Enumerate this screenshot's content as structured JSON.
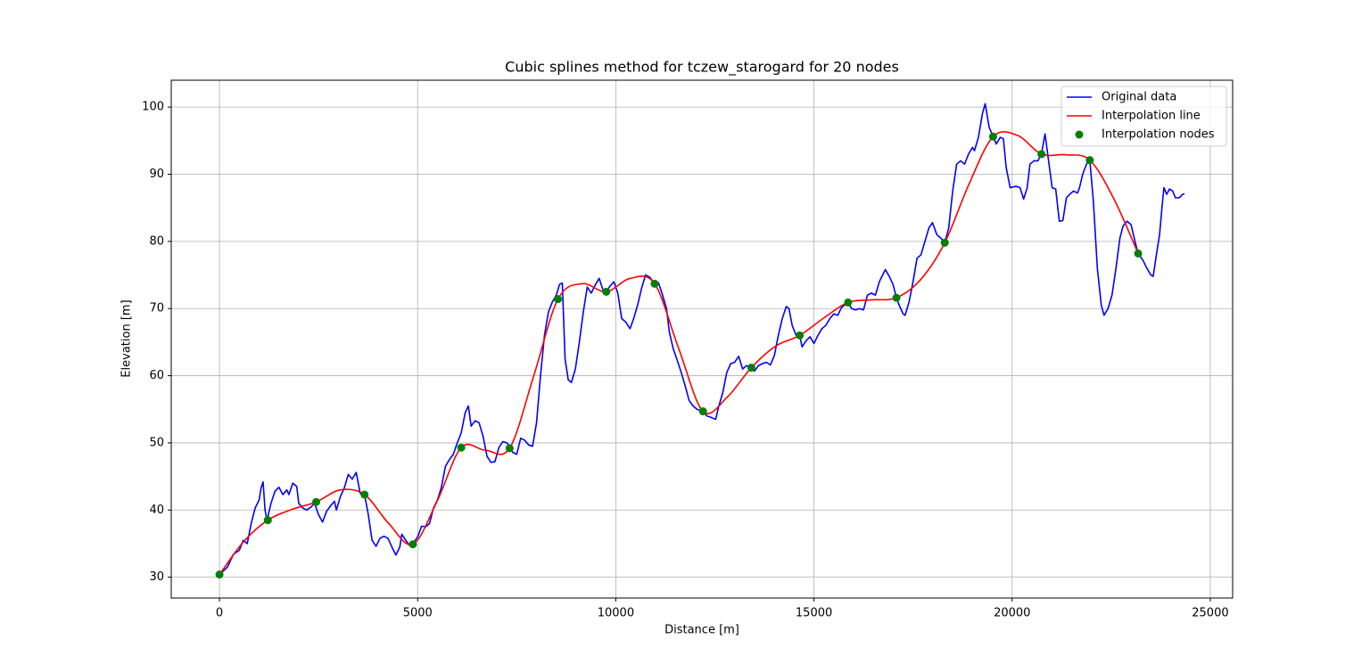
{
  "chart_data": {
    "type": "line",
    "title": "Cubic splines method for tczew_starogard for 20 nodes",
    "xlabel": "Distance [m]",
    "ylabel": "Elevation [m]",
    "xlim": [
      -1217,
      25564
    ],
    "ylim": [
      26.9,
      104.0
    ],
    "xticks": [
      0,
      5000,
      10000,
      15000,
      20000,
      25000
    ],
    "yticks": [
      30,
      40,
      50,
      60,
      70,
      80,
      90,
      100
    ],
    "grid": true,
    "legend": "upper right",
    "series": [
      {
        "name": "Original data",
        "type": "line",
        "color": "#0000ff",
        "x": [
          0,
          200,
          350,
          500,
          600,
          700,
          800,
          900,
          1000,
          1050,
          1100,
          1150,
          1200,
          1300,
          1400,
          1500,
          1600,
          1700,
          1750,
          1850,
          1950,
          2000,
          2100,
          2200,
          2300,
          2400,
          2500,
          2600,
          2700,
          2800,
          2900,
          2950,
          3050,
          3150,
          3250,
          3350,
          3450,
          3550,
          3660,
          3750,
          3850,
          3950,
          4050,
          4150,
          4250,
          4350,
          4450,
          4550,
          4600,
          4700,
          4800,
          4880,
          5000,
          5100,
          5200,
          5300,
          5400,
          5500,
          5600,
          5700,
          5800,
          5900,
          6000,
          6100,
          6200,
          6280,
          6350,
          6450,
          6550,
          6650,
          6750,
          6850,
          6950,
          7050,
          7150,
          7250,
          7320,
          7400,
          7500,
          7600,
          7700,
          7800,
          7900,
          8000,
          8100,
          8200,
          8300,
          8400,
          8500,
          8580,
          8650,
          8720,
          8800,
          8880,
          8980,
          9080,
          9180,
          9280,
          9380,
          9480,
          9580,
          9680,
          9760,
          9850,
          9950,
          10050,
          10150,
          10250,
          10360,
          10450,
          10550,
          10650,
          10750,
          10850,
          10980,
          11080,
          11180,
          11280,
          11350,
          11450,
          11550,
          11650,
          11750,
          11850,
          11950,
          12050,
          12200,
          12300,
          12400,
          12520,
          12600,
          12700,
          12800,
          12900,
          13000,
          13100,
          13200,
          13300,
          13420,
          13500,
          13600,
          13700,
          13800,
          13900,
          14000,
          14100,
          14200,
          14300,
          14370,
          14450,
          14550,
          14640,
          14700,
          14800,
          14900,
          15000,
          15100,
          15200,
          15300,
          15400,
          15500,
          15600,
          15700,
          15860,
          15950,
          16050,
          16150,
          16250,
          16350,
          16450,
          16550,
          16650,
          16750,
          16800,
          16900,
          17000,
          17080,
          17150,
          17250,
          17300,
          17400,
          17500,
          17600,
          17700,
          17800,
          17900,
          17990,
          18100,
          18200,
          18300,
          18400,
          18500,
          18600,
          18700,
          18800,
          18900,
          19000,
          19050,
          19150,
          19250,
          19320,
          19420,
          19520,
          19600,
          19700,
          19780,
          19850,
          19950,
          20100,
          20200,
          20290,
          20380,
          20450,
          20550,
          20650,
          20740,
          20830,
          20920,
          21010,
          21100,
          21190,
          21280,
          21370,
          21450,
          21550,
          21650,
          21700,
          21780,
          21930,
          21960,
          22050,
          22150,
          22250,
          22320,
          22420,
          22520,
          22620,
          22720,
          22800,
          22900,
          23000,
          23100,
          23180,
          23300,
          23400,
          23500,
          23560,
          23640,
          23720,
          23780,
          23830,
          23900,
          23970,
          24050,
          24120,
          24220,
          24300,
          24350
        ],
        "values": [
          30.4,
          31.5,
          33.4,
          34,
          35.5,
          35,
          38,
          40.3,
          41.5,
          43.3,
          44.2,
          40,
          38.5,
          41,
          42.8,
          43.4,
          42.3,
          43,
          42.3,
          44,
          43.5,
          41,
          40.3,
          40,
          40.4,
          41,
          39.3,
          38.2,
          39.8,
          40.6,
          41.3,
          40,
          42,
          43.3,
          45.3,
          44.6,
          45.6,
          42.5,
          42.3,
          39.5,
          35.5,
          34.6,
          35.8,
          36.1,
          35.8,
          34.5,
          33.3,
          34.5,
          36.4,
          35.5,
          34.7,
          35,
          36,
          37.6,
          37.5,
          38,
          40.3,
          41.5,
          43.4,
          46.5,
          47.5,
          48.3,
          50,
          51.5,
          54.5,
          55.5,
          52.5,
          53.3,
          53,
          51,
          48,
          47.1,
          47.2,
          49.3,
          50.2,
          50,
          49.5,
          48.6,
          48.3,
          50.7,
          50.4,
          49.7,
          49.5,
          53,
          60,
          66,
          69.5,
          71,
          72,
          73.6,
          73.8,
          62.5,
          59.4,
          59,
          61,
          65,
          69.5,
          73.2,
          72.3,
          73.5,
          74.5,
          72.7,
          72.5,
          73.3,
          74,
          72.3,
          68.5,
          68,
          67,
          68.5,
          70.5,
          73,
          75,
          74.7,
          73.7,
          73.8,
          72,
          70,
          66.5,
          64,
          62.3,
          60.5,
          58.5,
          56.3,
          55.5,
          55,
          54.7,
          54,
          53.8,
          53.5,
          55.5,
          57.5,
          60.5,
          61.8,
          62,
          62.9,
          61,
          61.5,
          61.2,
          60.7,
          61.5,
          61.8,
          62,
          61.6,
          63,
          66,
          68.5,
          70.3,
          70,
          67.5,
          66,
          66,
          64.3,
          65.2,
          65.8,
          64.8,
          66,
          67,
          67.5,
          68.5,
          69.2,
          69,
          70.2,
          70.9,
          70,
          69.8,
          70,
          69.8,
          72,
          72.3,
          72,
          74,
          75.2,
          75.8,
          74.8,
          73.5,
          71.6,
          70.5,
          69.2,
          69,
          71,
          74,
          77.5,
          78,
          80,
          82,
          82.8,
          81,
          80.5,
          79.8,
          82,
          87.5,
          91.5,
          92,
          91.5,
          93,
          94,
          93.5,
          95.5,
          99,
          100.5,
          97,
          95.6,
          94.5,
          95.5,
          95.3,
          91,
          88,
          88.2,
          88,
          86.3,
          88,
          91.5,
          92,
          92,
          93,
          96,
          92,
          88,
          87.8,
          83,
          83.1,
          86.5,
          87,
          87.5,
          87.2,
          88,
          90,
          92.3,
          92.1,
          86,
          76,
          70.5,
          69,
          70,
          72,
          76,
          80.5,
          82.3,
          83,
          82.5,
          80,
          78.2,
          77.2,
          76,
          75,
          74.8,
          78,
          81,
          85,
          88,
          87,
          87.8,
          87.5,
          86.5,
          86.5,
          87,
          87.1
        ]
      },
      {
        "name": "Interpolation line",
        "type": "line",
        "smooth": true,
        "color": "#ff0000",
        "x": [
          0,
          610,
          1220,
          1830,
          2440,
          3050,
          3660,
          4270,
          4880,
          5490,
          6100,
          6710,
          7320,
          7930,
          8540,
          9150,
          9760,
          10370,
          10980,
          11590,
          12200,
          12810,
          13420,
          14030,
          14640,
          15250,
          15860,
          16470,
          17080,
          17690,
          18300,
          18910,
          19520,
          20130,
          20740,
          21350,
          21960,
          22570,
          23180
        ],
        "values": [
          30.4,
          35.3,
          38.5,
          40.1,
          41.2,
          43.0,
          42.3,
          38.0,
          34.9,
          41.3,
          49.3,
          48.9,
          49.2,
          60.0,
          71.4,
          73.7,
          72.5,
          74.5,
          73.7,
          64.0,
          54.7,
          56.8,
          61.2,
          64.4,
          66.0,
          68.6,
          70.9,
          71.3,
          71.6,
          74.3,
          79.8,
          88.5,
          95.6,
          95.8,
          93.0,
          92.9,
          92.1,
          86.3,
          78.2
        ]
      },
      {
        "name": "Interpolation nodes",
        "type": "scatter",
        "color": "#008000",
        "x": [
          0,
          1220,
          2440,
          3660,
          4880,
          6100,
          7320,
          8540,
          9760,
          10980,
          12200,
          13420,
          14640,
          15860,
          17080,
          18300,
          19520,
          20740,
          21960,
          23180
        ],
        "values": [
          30.4,
          38.5,
          41.2,
          42.3,
          34.9,
          49.3,
          49.2,
          71.4,
          72.5,
          73.7,
          54.7,
          61.2,
          66.0,
          70.9,
          71.6,
          79.8,
          95.6,
          93.0,
          92.1,
          78.2
        ]
      }
    ]
  }
}
